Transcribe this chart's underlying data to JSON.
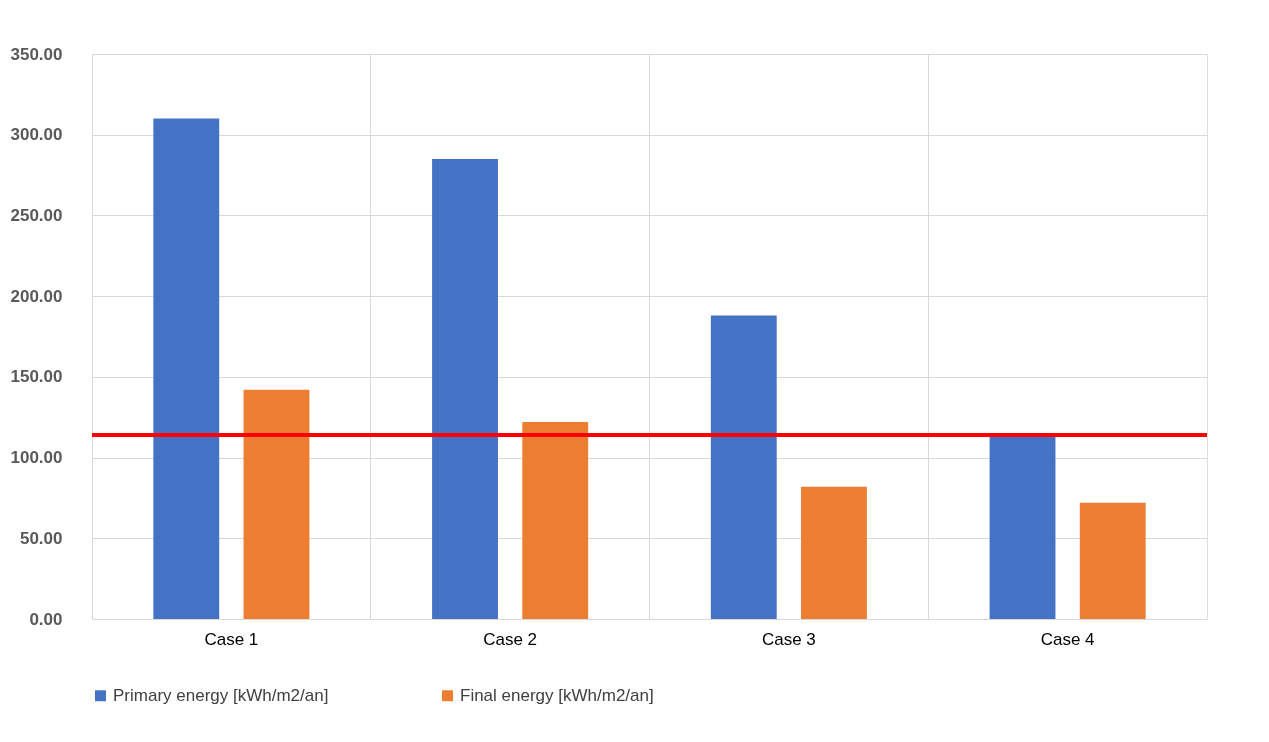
{
  "chart_data": {
    "type": "bar",
    "categories": [
      "Case 1",
      "Case 2",
      "Case 3",
      "Case 4"
    ],
    "series": [
      {
        "name": "Primary energy [kWh/m2/an]",
        "color": "#4472c4",
        "values": [
          310,
          285,
          188,
          113
        ]
      },
      {
        "name": "Final energy [kWh/m2/an]",
        "color": "#ed7d31",
        "values": [
          142,
          122,
          82,
          72
        ]
      }
    ],
    "ylim": [
      0,
      350
    ],
    "yticks": [
      {
        "value": 0,
        "label": "0.00"
      },
      {
        "value": 50,
        "label": "50.00"
      },
      {
        "value": 100,
        "label": "100.00"
      },
      {
        "value": 150,
        "label": "150.00"
      },
      {
        "value": 200,
        "label": "200.00"
      },
      {
        "value": 250,
        "label": "250.00"
      },
      {
        "value": 300,
        "label": "300.00"
      },
      {
        "value": 350,
        "label": "350.00"
      }
    ],
    "ref_lines": [
      {
        "axis": "y",
        "value": 114,
        "color": "#ff0000"
      }
    ],
    "grid": true,
    "legend": "bottom"
  }
}
